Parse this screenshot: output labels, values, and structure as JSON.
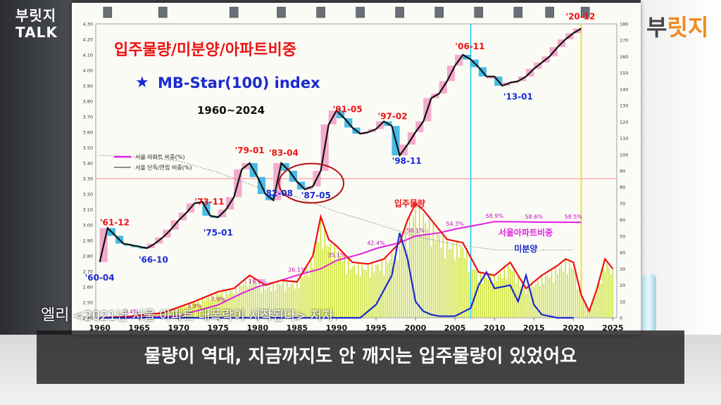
{
  "brand_left_line1": "부릿지",
  "brand_left_line2": "TALK",
  "brand_right_main": "부",
  "brand_right_accent": "릿지",
  "caption_name": "엘리",
  "caption_book": "<2021년 서울 아파트 대폭락이 시작된다> 저자",
  "subtitle_text": "물량이 역대, 지금까지도 안 깨지는 입주물량이 있었어요",
  "chart_data": {
    "type": "line",
    "title": "입주물량/미분양/아파트비중",
    "subtitle": "MB-Star(100) index",
    "star": "★",
    "period": "1960~2024",
    "x_ticks": [
      "1960",
      "1965",
      "1970",
      "1975",
      "1980",
      "1985",
      "1990",
      "1995",
      "2000",
      "2005",
      "2010",
      "2015",
      "2020",
      "2025"
    ],
    "xlim": [
      1959.5,
      2025.5
    ],
    "ylim_left": [
      2.4,
      4.3
    ],
    "left_ticks": [
      "2.40",
      "2.50",
      "2.60",
      "2.70",
      "2.80",
      "2.90",
      "3.00",
      "3.10",
      "3.20",
      "3.30",
      "3.40",
      "3.50",
      "3.60",
      "3.70",
      "3.80",
      "3.90",
      "4.00",
      "4.10",
      "4.20",
      "4.30"
    ],
    "ylim_right": [
      0,
      180
    ],
    "right_ticks": [
      "0",
      "10",
      "20",
      "30",
      "40",
      "50",
      "60",
      "70",
      "80",
      "90",
      "100",
      "110",
      "120",
      "130",
      "140",
      "150",
      "160",
      "170",
      "180"
    ],
    "legend": [
      {
        "name": "서울 아파트 비중(%)",
        "color": "#e020e0"
      },
      {
        "name": "서울 단독/연립 비중(%)",
        "color": "#222222"
      }
    ],
    "series": [
      {
        "name": "MB-Star index",
        "color": "#111111",
        "x": [
          1960,
          1961,
          1962,
          1963,
          1964,
          1965,
          1966,
          1967,
          1968,
          1969,
          1970,
          1971,
          1972,
          1973,
          1974,
          1975,
          1976,
          1977,
          1978,
          1979,
          1980,
          1981,
          1982,
          1983,
          1984,
          1985,
          1986,
          1987,
          1988,
          1989,
          1990,
          1991,
          1992,
          1993,
          1994,
          1995,
          1996,
          1997,
          1998,
          1999,
          2000,
          2001,
          2002,
          2003,
          2004,
          2005,
          2006,
          2007,
          2008,
          2009,
          2010,
          2011,
          2012,
          2013,
          2014,
          2015,
          2016,
          2017,
          2018,
          2019,
          2020,
          2021
        ],
        "values": [
          2.76,
          2.98,
          2.93,
          2.88,
          2.87,
          2.86,
          2.85,
          2.88,
          2.92,
          2.97,
          3.03,
          3.08,
          3.14,
          3.15,
          3.06,
          3.05,
          3.1,
          3.18,
          3.36,
          3.4,
          3.31,
          3.2,
          3.16,
          3.4,
          3.35,
          3.28,
          3.23,
          3.25,
          3.35,
          3.65,
          3.74,
          3.69,
          3.63,
          3.59,
          3.6,
          3.62,
          3.67,
          3.64,
          3.45,
          3.52,
          3.6,
          3.67,
          3.82,
          3.85,
          3.93,
          4.03,
          4.1,
          4.07,
          4.02,
          3.96,
          3.96,
          3.9,
          3.92,
          3.93,
          3.96,
          4.01,
          4.05,
          4.09,
          4.15,
          4.2,
          4.24,
          4.27
        ]
      },
      {
        "name": "서울 아파트 비중(%)",
        "color": "#e020e0",
        "x": [
          1960,
          1965,
          1970,
          1972,
          1975,
          1978,
          1980,
          1983,
          1985,
          1988,
          1990,
          1993,
          1995,
          1998,
          2000,
          2003,
          2005,
          2008,
          2010,
          2013,
          2015,
          2018,
          2020,
          2021
        ],
        "values": [
          0,
          0.4,
          1,
          3.9,
          7.9,
          15,
          19,
          23,
          26.1,
          30,
          35.1,
          39,
          42.4,
          46,
          50.1,
          52,
          54.3,
          57,
          58.9,
          58.8,
          58.6,
          58.5,
          58.5,
          58.5
        ]
      },
      {
        "name": "서울 단독/연립 비중(%)",
        "color": "#222222",
        "x": [
          1960,
          1965,
          1970,
          1975,
          1980,
          1985,
          1990,
          1995,
          2000,
          2005,
          2010,
          2015,
          2020
        ],
        "values": [
          99.6,
          98.5,
          96,
          89,
          80,
          73.9,
          64.9,
          57.6,
          49.9,
          45,
          41.7,
          41.4,
          41.5
        ]
      },
      {
        "name": "입주물량",
        "color": "#ee1111",
        "x": [
          1960,
          1964,
          1968,
          1972,
          1975,
          1977,
          1979,
          1981,
          1983,
          1985,
          1987,
          1988,
          1989,
          1990,
          1992,
          1994,
          1996,
          1998,
          1999,
          2000,
          2001,
          2002,
          2004,
          2006,
          2008,
          2010,
          2012,
          2014,
          2016,
          2018,
          2019,
          2020,
          2021,
          2022,
          2023,
          2024,
          2025
        ],
        "values": [
          0,
          1,
          3,
          10,
          16,
          18,
          26,
          20,
          23,
          22,
          38,
          62,
          48,
          44,
          34,
          33,
          36,
          46,
          60,
          70,
          66,
          60,
          48,
          46,
          28,
          26,
          34,
          18,
          26,
          32,
          36,
          34,
          14,
          4,
          18,
          36,
          30
        ]
      },
      {
        "name": "미분양",
        "color": "#1a2ad0",
        "x": [
          1960,
          1993,
          1995,
          1997,
          1998,
          1999,
          2000,
          2001,
          2002,
          2003,
          2005,
          2007,
          2008,
          2009,
          2010,
          2012,
          2013,
          2014,
          2015,
          2016,
          2018,
          2020
        ],
        "values": [
          0,
          0,
          8,
          26,
          52,
          36,
          10,
          4,
          2,
          1,
          1,
          6,
          20,
          28,
          18,
          20,
          10,
          26,
          8,
          2,
          0,
          0
        ]
      }
    ],
    "annotations": [
      {
        "label": "'60-04",
        "x": 1960,
        "side": "below",
        "color": "#1a2ad0"
      },
      {
        "label": "'61-12",
        "x": 1961.9,
        "side": "above",
        "color": "#ee1111"
      },
      {
        "label": "'66-10",
        "x": 1966.8,
        "side": "below",
        "color": "#1a2ad0"
      },
      {
        "label": "'73-11",
        "x": 1973.9,
        "side": "above",
        "color": "#ee1111"
      },
      {
        "label": "'75-01",
        "x": 1975,
        "side": "below",
        "color": "#1a2ad0"
      },
      {
        "label": "'79-01",
        "x": 1979,
        "side": "above",
        "color": "#ee1111"
      },
      {
        "label": "'82-08",
        "x": 1982.6,
        "side": "below",
        "color": "#1a2ad0"
      },
      {
        "label": "'83-04",
        "x": 1983.3,
        "side": "above",
        "color": "#ee1111"
      },
      {
        "label": "'87-05",
        "x": 1987.4,
        "side": "below",
        "color": "#1a2ad0"
      },
      {
        "label": "'91-05",
        "x": 1991.4,
        "side": "above",
        "color": "#ee1111"
      },
      {
        "label": "'97-02",
        "x": 1997.1,
        "side": "above",
        "color": "#ee1111"
      },
      {
        "label": "'98-11",
        "x": 1998.9,
        "side": "below",
        "color": "#1a2ad0"
      },
      {
        "label": "'06-11",
        "x": 2006.9,
        "side": "above",
        "color": "#ee1111"
      },
      {
        "label": "'13-01",
        "x": 2013,
        "side": "below",
        "color": "#1a2ad0"
      },
      {
        "label": "'20-12",
        "x": 2020.9,
        "side": "above",
        "color": "#ee1111"
      }
    ],
    "pct_labels": [
      {
        "label": "0.4%",
        "x": 1964,
        "v": 0.4
      },
      {
        "label": "3.9%",
        "x": 1972,
        "v": 3.9
      },
      {
        "label": "7.9%",
        "x": 1975,
        "v": 7.9
      },
      {
        "label": "19.0%",
        "x": 1980,
        "v": 19.0
      },
      {
        "label": "26.1%",
        "x": 1985,
        "v": 26.1
      },
      {
        "label": "35.1%",
        "x": 1990,
        "v": 35.1
      },
      {
        "label": "42.4%",
        "x": 1995,
        "v": 42.4
      },
      {
        "label": "50.1%",
        "x": 2000,
        "v": 50.1
      },
      {
        "label": "54.3%",
        "x": 2005,
        "v": 54.3
      },
      {
        "label": "58.9%",
        "x": 2010,
        "v": 58.9
      },
      {
        "label": "58.6%",
        "x": 2015,
        "v": 58.6
      },
      {
        "label": "58.5%",
        "x": 2020,
        "v": 58.5
      }
    ],
    "series_labels": [
      {
        "label": "입주물량",
        "color": "#ee1111"
      },
      {
        "label": "미분양",
        "color": "#1a2ad0"
      },
      {
        "label": "서울아파트비중",
        "color": "#e020e0"
      }
    ],
    "colors": {
      "volume_fill": "#c8e01e",
      "highlight_ring": "#b01010",
      "box_up": "#f2a2c8",
      "box_down": "#34b4e4",
      "cursor_blue": "#14c8f0",
      "cursor_yellow": "#f0e030"
    }
  }
}
